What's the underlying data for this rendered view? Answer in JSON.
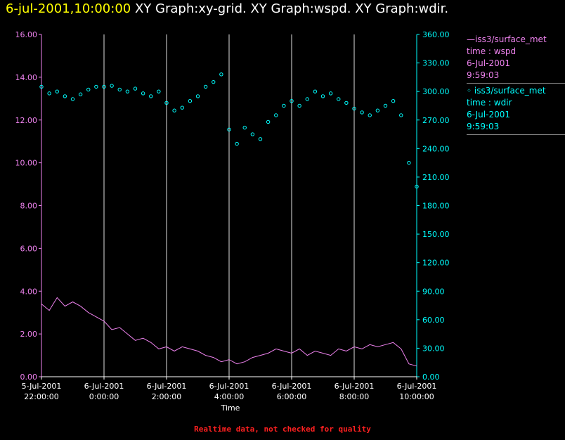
{
  "header": {
    "timestamp": "6-jul-2001,10:00:00",
    "graph_titles": "XY Graph:xy-grid.  XY Graph:wspd.  XY Graph:wdir."
  },
  "footer_note": "Realtime data, not checked for quality",
  "legend": [
    {
      "marker": "line",
      "label": "iss3/surface_met",
      "field": "time : wspd",
      "date": "6-Jul-2001",
      "time": "9:59:03",
      "color": "#ee82ee"
    },
    {
      "marker": "circle",
      "label": "iss3/surface_met",
      "field": "time : wdir",
      "date": "6-Jul-2001",
      "time": "9:59:03",
      "color": "#00ffff"
    }
  ],
  "colors": {
    "background": "#000000",
    "grid": "#ffffff",
    "wspd": "#ee82ee",
    "wdir": "#00ffff",
    "timestamp": "#ffff00",
    "note": "#ff2020"
  },
  "chart_data": {
    "type": "line",
    "xlabel": "Time",
    "x_range_hours": [
      22,
      34
    ],
    "x_ticks": [
      {
        "h": 22,
        "date": "5-Jul-2001",
        "time": "22:00:00"
      },
      {
        "h": 24,
        "date": "6-Jul-2001",
        "time": "0:00:00"
      },
      {
        "h": 26,
        "date": "6-Jul-2001",
        "time": "2:00:00"
      },
      {
        "h": 28,
        "date": "6-Jul-2001",
        "time": "4:00:00"
      },
      {
        "h": 30,
        "date": "6-Jul-2001",
        "time": "6:00:00"
      },
      {
        "h": 32,
        "date": "6-Jul-2001",
        "time": "8:00:00"
      },
      {
        "h": 34,
        "date": "6-Jul-2001",
        "time": "10:00:00"
      }
    ],
    "y_left": {
      "range": [
        0,
        16
      ],
      "ticks": [
        "0.00",
        "2.00",
        "4.00",
        "6.00",
        "8.00",
        "10.00",
        "12.00",
        "14.00",
        "16.00"
      ],
      "color": "#ee82ee"
    },
    "y_right": {
      "range": [
        0,
        360
      ],
      "ticks": [
        "0.00",
        "30.00",
        "60.00",
        "90.00",
        "120.00",
        "150.00",
        "180.00",
        "210.00",
        "240.00",
        "270.00",
        "300.00",
        "330.00",
        "360.00"
      ],
      "color": "#00ffff"
    },
    "grid": "vertical lines at x ticks",
    "series": [
      {
        "name": "iss3/surface_met time : wspd",
        "axis": "left",
        "style": "line",
        "x_hours": [
          22.0,
          22.25,
          22.5,
          22.75,
          23.0,
          23.25,
          23.5,
          23.75,
          24.0,
          24.25,
          24.5,
          24.75,
          25.0,
          25.25,
          25.5,
          25.75,
          26.0,
          26.25,
          26.5,
          26.75,
          27.0,
          27.25,
          27.5,
          27.75,
          28.0,
          28.25,
          28.5,
          28.75,
          29.0,
          29.25,
          29.5,
          29.75,
          30.0,
          30.25,
          30.5,
          30.75,
          31.0,
          31.25,
          31.5,
          31.75,
          32.0,
          32.25,
          32.5,
          32.75,
          33.0,
          33.25,
          33.5,
          33.75,
          34.0
        ],
        "values": [
          3.4,
          3.1,
          3.7,
          3.3,
          3.5,
          3.3,
          3.0,
          2.8,
          2.6,
          2.2,
          2.3,
          2.0,
          1.7,
          1.8,
          1.6,
          1.3,
          1.4,
          1.2,
          1.4,
          1.3,
          1.2,
          1.0,
          0.9,
          0.7,
          0.8,
          0.6,
          0.7,
          0.9,
          1.0,
          1.1,
          1.3,
          1.2,
          1.1,
          1.3,
          1.0,
          1.2,
          1.1,
          1.0,
          1.3,
          1.2,
          1.4,
          1.3,
          1.5,
          1.4,
          1.5,
          1.6,
          1.3,
          0.6,
          0.5
        ]
      },
      {
        "name": "iss3/surface_met time : wdir",
        "axis": "right",
        "style": "circles",
        "x_hours": [
          22.0,
          22.25,
          22.5,
          22.75,
          23.0,
          23.25,
          23.5,
          23.75,
          24.0,
          24.25,
          24.5,
          24.75,
          25.0,
          25.25,
          25.5,
          25.75,
          26.0,
          26.25,
          26.5,
          26.75,
          27.0,
          27.25,
          27.5,
          27.75,
          28.0,
          28.25,
          28.5,
          28.75,
          29.0,
          29.25,
          29.5,
          29.75,
          30.0,
          30.25,
          30.5,
          30.75,
          31.0,
          31.25,
          31.5,
          31.75,
          32.0,
          32.25,
          32.5,
          32.75,
          33.0,
          33.25,
          33.5,
          33.75,
          34.0
        ],
        "values": [
          305,
          298,
          300,
          295,
          292,
          297,
          302,
          305,
          305,
          306,
          302,
          300,
          303,
          298,
          295,
          300,
          288,
          280,
          283,
          290,
          295,
          305,
          310,
          318,
          260,
          245,
          262,
          255,
          250,
          268,
          275,
          285,
          290,
          285,
          292,
          300,
          295,
          298,
          292,
          288,
          282,
          278,
          275,
          280,
          285,
          290,
          275,
          225,
          200
        ]
      }
    ]
  }
}
